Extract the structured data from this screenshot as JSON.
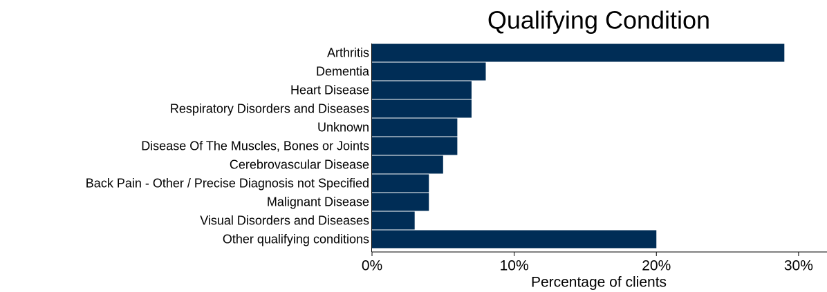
{
  "chart_data": {
    "type": "barh",
    "title": "Qualifying Condition",
    "xlabel": "Percentage of clients",
    "categories": [
      "Arthritis",
      "Dementia",
      "Heart Disease",
      "Respiratory Disorders and Diseases",
      "Unknown",
      "Disease Of The Muscles, Bones or Joints",
      "Cerebrovascular Disease",
      "Back Pain - Other / Precise Diagnosis not Specified",
      "Malignant Disease",
      "Visual Disorders and Diseases",
      "Other qualifying conditions"
    ],
    "values": [
      29,
      8,
      7,
      7,
      6,
      6,
      5,
      4,
      4,
      3,
      20
    ],
    "color": "#002d56",
    "xlim": [
      0,
      32
    ],
    "xticks": [
      {
        "value": 0,
        "label": "0%"
      },
      {
        "value": 10,
        "label": "10%"
      },
      {
        "value": 20,
        "label": "20%"
      },
      {
        "value": 30,
        "label": "30%"
      }
    ]
  }
}
